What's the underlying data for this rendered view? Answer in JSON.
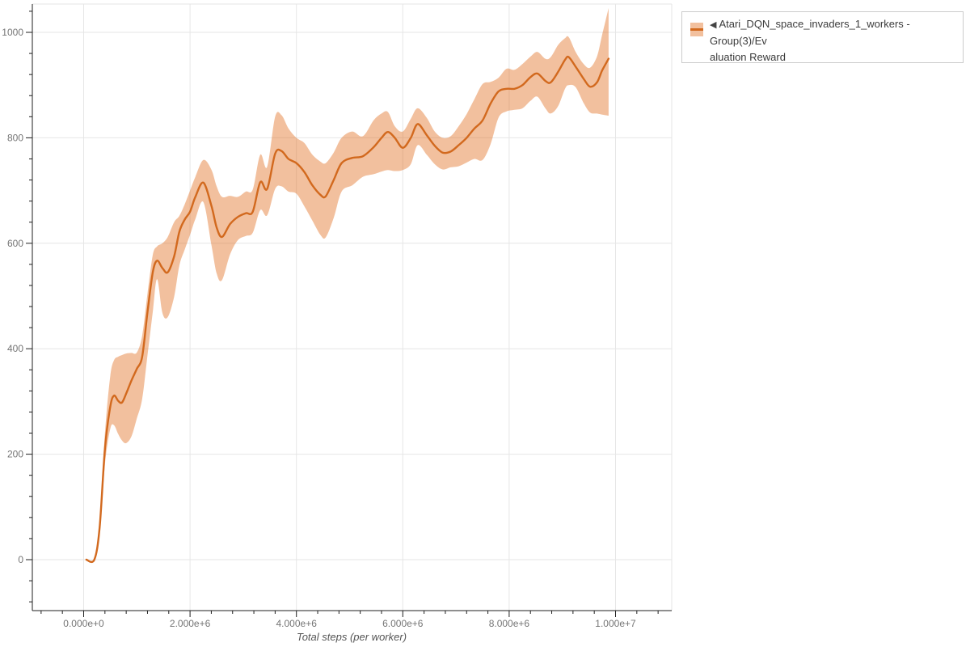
{
  "colors": {
    "line": "#d2691e",
    "band": "rgba(224,104,24,0.42)",
    "band_solid": "#f2c09e",
    "grid": "#e6e6e6",
    "plot_outline": "#e6e6e6",
    "axis": "#1f1f1f",
    "tick_label": "#757575",
    "axis_title": "#555555",
    "legend_text": "#3b3b3b",
    "legend_border": "#cccccc"
  },
  "legend": {
    "marker": "◀",
    "lines": [
      "Atari_DQN_space_invaders_1_workers - Group(3)/Ev",
      "aluation Reward"
    ],
    "label_full": "Atari_DQN_space_invaders_1_workers - Group(3)/Evaluation Reward"
  },
  "chart_data": {
    "type": "line",
    "title": "",
    "xlabel": "Total steps (per worker)",
    "ylabel": "",
    "legend_position": "top-right",
    "grid": true,
    "xlim": [
      -970000,
      11060000
    ],
    "ylim": [
      -97,
      1054
    ],
    "x_ticks": {
      "values": [
        0,
        2000000,
        4000000,
        6000000,
        8000000,
        10000000
      ],
      "labels": [
        "0.000e+0",
        "2.000e+6",
        "4.000e+6",
        "6.000e+6",
        "8.000e+6",
        "1.000e+7"
      ],
      "minor_step": 400000,
      "minor_range": [
        -800000,
        10800000
      ]
    },
    "y_ticks": {
      "values": [
        0,
        200,
        400,
        600,
        800,
        1000
      ],
      "labels": [
        "0",
        "200",
        "400",
        "600",
        "800",
        "1000"
      ],
      "minor_step": 40,
      "minor_range": [
        -80,
        1040
      ]
    },
    "series": [
      {
        "name": "Atari_DQN_space_invaders_1_workers - Group(3)/Evaluation Reward",
        "has_confidence_band": true,
        "points_format": [
          "step",
          "mean",
          "lower",
          "upper"
        ],
        "points": [
          [
            50000,
            0,
            0,
            0
          ],
          [
            200000,
            0,
            0,
            0
          ],
          [
            300000,
            60,
            48,
            72
          ],
          [
            400000,
            210,
            180,
            240
          ],
          [
            500000,
            290,
            248,
            348
          ],
          [
            570000,
            311,
            255,
            378
          ],
          [
            650000,
            301,
            238,
            385
          ],
          [
            720000,
            298,
            226,
            388
          ],
          [
            800000,
            315,
            221,
            391
          ],
          [
            900000,
            340,
            234,
            392
          ],
          [
            1000000,
            362,
            268,
            393
          ],
          [
            1100000,
            385,
            305,
            425
          ],
          [
            1200000,
            470,
            388,
            505
          ],
          [
            1300000,
            545,
            470,
            578
          ],
          [
            1380000,
            567,
            532,
            594
          ],
          [
            1480000,
            553,
            468,
            600
          ],
          [
            1580000,
            545,
            460,
            612
          ],
          [
            1700000,
            575,
            498,
            640
          ],
          [
            1800000,
            622,
            558,
            652
          ],
          [
            1900000,
            645,
            588,
            674
          ],
          [
            2000000,
            660,
            616,
            700
          ],
          [
            2100000,
            688,
            646,
            726
          ],
          [
            2250000,
            715,
            678,
            758
          ],
          [
            2400000,
            672,
            598,
            740
          ],
          [
            2500000,
            630,
            543,
            708
          ],
          [
            2600000,
            612,
            530,
            688
          ],
          [
            2750000,
            636,
            578,
            690
          ],
          [
            2900000,
            650,
            606,
            688
          ],
          [
            3050000,
            657,
            614,
            698
          ],
          [
            3180000,
            660,
            620,
            702
          ],
          [
            3320000,
            716,
            663,
            768
          ],
          [
            3450000,
            703,
            653,
            745
          ],
          [
            3600000,
            770,
            703,
            840
          ],
          [
            3720000,
            775,
            708,
            843
          ],
          [
            3850000,
            760,
            698,
            818
          ],
          [
            4000000,
            752,
            694,
            800
          ],
          [
            4150000,
            735,
            670,
            790
          ],
          [
            4300000,
            710,
            643,
            768
          ],
          [
            4450000,
            692,
            616,
            755
          ],
          [
            4550000,
            689,
            611,
            752
          ],
          [
            4700000,
            720,
            648,
            772
          ],
          [
            4850000,
            752,
            698,
            800
          ],
          [
            5050000,
            762,
            710,
            812
          ],
          [
            5250000,
            765,
            726,
            803
          ],
          [
            5450000,
            782,
            731,
            833
          ],
          [
            5600000,
            800,
            736,
            846
          ],
          [
            5720000,
            811,
            739,
            849
          ],
          [
            5850000,
            800,
            737,
            822
          ],
          [
            6000000,
            781,
            739,
            812
          ],
          [
            6150000,
            800,
            750,
            836
          ],
          [
            6280000,
            826,
            786,
            856
          ],
          [
            6450000,
            805,
            768,
            838
          ],
          [
            6600000,
            785,
            750,
            812
          ],
          [
            6750000,
            772,
            740,
            800
          ],
          [
            6900000,
            774,
            744,
            803
          ],
          [
            7050000,
            786,
            746,
            822
          ],
          [
            7200000,
            800,
            753,
            845
          ],
          [
            7350000,
            818,
            760,
            874
          ],
          [
            7500000,
            833,
            758,
            902
          ],
          [
            7650000,
            865,
            788,
            906
          ],
          [
            7800000,
            888,
            838,
            914
          ],
          [
            7950000,
            893,
            850,
            931
          ],
          [
            8100000,
            893,
            853,
            929
          ],
          [
            8250000,
            900,
            856,
            940
          ],
          [
            8400000,
            915,
            870,
            954
          ],
          [
            8530000,
            922,
            878,
            963
          ],
          [
            8680000,
            908,
            856,
            950
          ],
          [
            8780000,
            905,
            846,
            953
          ],
          [
            8920000,
            925,
            860,
            976
          ],
          [
            9050000,
            948,
            893,
            989
          ],
          [
            9120000,
            953,
            900,
            991
          ],
          [
            9250000,
            935,
            896,
            963
          ],
          [
            9400000,
            912,
            866,
            940
          ],
          [
            9520000,
            897,
            848,
            933
          ],
          [
            9650000,
            905,
            846,
            954
          ],
          [
            9750000,
            928,
            844,
            996
          ],
          [
            9870000,
            950,
            842,
            1046
          ]
        ]
      }
    ]
  }
}
